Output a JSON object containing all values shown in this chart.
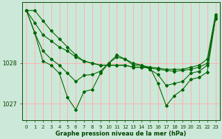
{
  "xlabel": "Graphe pression niveau de la mer (hPa)",
  "bg_color": "#cce8d8",
  "line_color": "#006600",
  "grid_color": "#ffb0b0",
  "text_color": "#004400",
  "ylim": [
    1026.6,
    1029.5
  ],
  "xlim": [
    -0.5,
    23.5
  ],
  "yticks": [
    1027,
    1028
  ],
  "xticks": [
    0,
    1,
    2,
    3,
    4,
    5,
    6,
    7,
    8,
    9,
    10,
    11,
    12,
    13,
    14,
    15,
    16,
    17,
    18,
    19,
    20,
    21,
    22,
    23
  ],
  "series": [
    [
      1029.3,
      1029.3,
      1029.05,
      1028.8,
      1028.6,
      1028.4,
      1028.2,
      1028.05,
      1028.0,
      1027.95,
      1027.95,
      1027.95,
      1027.95,
      1027.9,
      1027.9,
      1027.9,
      1027.88,
      1027.85,
      1027.85,
      1027.85,
      1027.9,
      1027.95,
      1028.1,
      1029.2
    ],
    [
      1029.3,
      1029.0,
      1028.7,
      1028.55,
      1028.4,
      1028.3,
      1028.15,
      1028.05,
      1028.0,
      1027.95,
      1027.95,
      1027.95,
      1027.95,
      1027.9,
      1027.9,
      1027.88,
      1027.85,
      1027.82,
      1027.8,
      1027.82,
      1027.85,
      1027.9,
      1028.0,
      1029.1
    ],
    [
      1029.3,
      1028.75,
      1028.3,
      1028.1,
      1027.95,
      1027.75,
      1027.55,
      1027.7,
      1027.72,
      1027.8,
      1028.0,
      1028.15,
      1028.1,
      1028.0,
      1027.95,
      1027.85,
      1027.72,
      1027.45,
      1027.5,
      1027.55,
      1027.75,
      1027.8,
      1027.95,
      1029.15
    ],
    [
      1029.3,
      1028.75,
      1028.05,
      1027.95,
      1027.75,
      1027.15,
      1026.85,
      1027.3,
      1027.35,
      1027.75,
      1028.0,
      1028.2,
      1028.1,
      1027.95,
      1027.95,
      1027.9,
      1027.5,
      1026.95,
      1027.2,
      1027.35,
      1027.6,
      1027.65,
      1027.78,
      1029.1
    ]
  ]
}
